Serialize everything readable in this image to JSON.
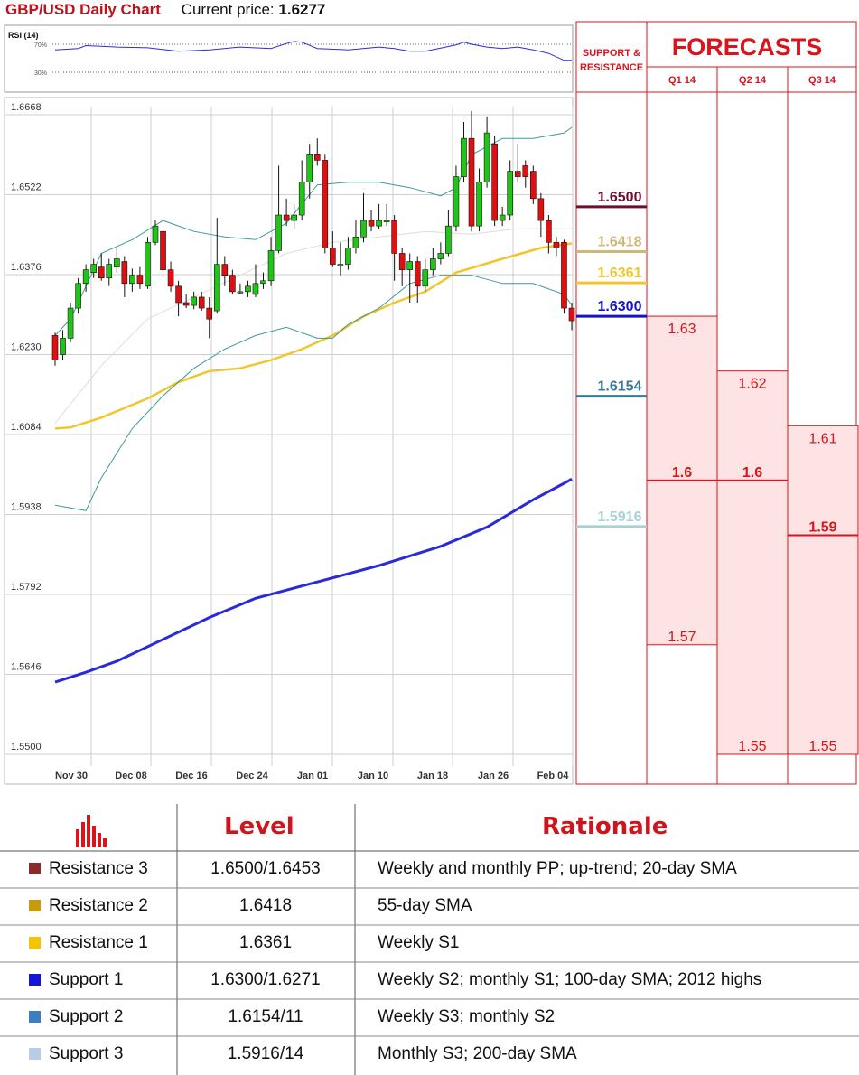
{
  "header": {
    "title": "GBP/USD Daily Chart",
    "price_label": "Current price:",
    "price_value": "1.6277"
  },
  "rsi_panel": {
    "label": "RSI (14)",
    "level_70": "70%",
    "level_30": "30%"
  },
  "forecast_panel": {
    "support_resistance_label": [
      "SUPPORT &",
      "RESISTANCE"
    ],
    "forecasts_title": "FORECASTS",
    "quarters": [
      "Q1 14",
      "Q2 14",
      "Q3 14"
    ]
  },
  "chart_data": {
    "type": "candlestick",
    "title": "GBP/USD Daily Chart",
    "y_ticks": [
      "1.6668",
      "1.6522",
      "1.6376",
      "1.6230",
      "1.6084",
      "1.5938",
      "1.5792",
      "1.5646",
      "1.5500"
    ],
    "ylim": [
      1.55,
      1.6668
    ],
    "x_ticks": [
      "Nov 30",
      "Dec 08",
      "Dec 16",
      "Dec 24",
      "Jan 01",
      "Jan 10",
      "Jan 18",
      "Jan 26",
      "Feb 04"
    ],
    "candles": [
      [
        1.625,
        1.6205,
        1.6255,
        1.6195
      ],
      [
        1.6215,
        1.6245,
        1.626,
        1.6205
      ],
      [
        1.6245,
        1.63,
        1.631,
        1.6238
      ],
      [
        1.63,
        1.6345,
        1.6355,
        1.629
      ],
      [
        1.6345,
        1.637,
        1.638,
        1.633
      ],
      [
        1.6365,
        1.638,
        1.639,
        1.6355
      ],
      [
        1.6375,
        1.6355,
        1.64,
        1.635
      ],
      [
        1.6355,
        1.638,
        1.639,
        1.634
      ],
      [
        1.6375,
        1.639,
        1.641,
        1.6365
      ],
      [
        1.6385,
        1.6345,
        1.6395,
        1.632
      ],
      [
        1.6345,
        1.636,
        1.6372,
        1.633
      ],
      [
        1.636,
        1.6345,
        1.6375,
        1.6335
      ],
      [
        1.634,
        1.642,
        1.643,
        1.6335
      ],
      [
        1.642,
        1.645,
        1.646,
        1.6415
      ],
      [
        1.644,
        1.637,
        1.645,
        1.636
      ],
      [
        1.637,
        1.634,
        1.6385,
        1.633
      ],
      [
        1.634,
        1.631,
        1.635,
        1.6285
      ],
      [
        1.631,
        1.6305,
        1.6325,
        1.63
      ],
      [
        1.6305,
        1.632,
        1.633,
        1.6298
      ],
      [
        1.632,
        1.63,
        1.633,
        1.6295
      ],
      [
        1.63,
        1.628,
        1.632,
        1.6245
      ],
      [
        1.6295,
        1.638,
        1.6465,
        1.629
      ],
      [
        1.638,
        1.636,
        1.6395,
        1.634
      ],
      [
        1.636,
        1.633,
        1.637,
        1.6325
      ],
      [
        1.633,
        1.633,
        1.6345,
        1.6325
      ],
      [
        1.633,
        1.634,
        1.635,
        1.632
      ],
      [
        1.6325,
        1.6345,
        1.638,
        1.632
      ],
      [
        1.6345,
        1.635,
        1.6365,
        1.6335
      ],
      [
        1.635,
        1.6405,
        1.643,
        1.634
      ],
      [
        1.6405,
        1.647,
        1.656,
        1.64
      ],
      [
        1.647,
        1.646,
        1.65,
        1.645
      ],
      [
        1.646,
        1.647,
        1.649,
        1.6445
      ],
      [
        1.647,
        1.653,
        1.657,
        1.646
      ],
      [
        1.653,
        1.658,
        1.66,
        1.65
      ],
      [
        1.658,
        1.657,
        1.661,
        1.656
      ],
      [
        1.657,
        1.641,
        1.658,
        1.64
      ],
      [
        1.641,
        1.638,
        1.644,
        1.6375
      ],
      [
        1.638,
        1.638,
        1.642,
        1.636
      ],
      [
        1.638,
        1.641,
        1.643,
        1.637
      ],
      [
        1.641,
        1.643,
        1.646,
        1.64
      ],
      [
        1.643,
        1.646,
        1.651,
        1.642
      ],
      [
        1.646,
        1.645,
        1.648,
        1.644
      ],
      [
        1.645,
        1.646,
        1.649,
        1.6445
      ],
      [
        1.646,
        1.646,
        1.649,
        1.645
      ],
      [
        1.646,
        1.64,
        1.647,
        1.635
      ],
      [
        1.64,
        1.637,
        1.641,
        1.634
      ],
      [
        1.637,
        1.6385,
        1.64,
        1.631
      ],
      [
        1.6385,
        1.634,
        1.6395,
        1.631
      ],
      [
        1.634,
        1.637,
        1.639,
        1.633
      ],
      [
        1.637,
        1.639,
        1.641,
        1.636
      ],
      [
        1.639,
        1.64,
        1.642,
        1.638
      ],
      [
        1.64,
        1.645,
        1.648,
        1.6395
      ],
      [
        1.645,
        1.654,
        1.656,
        1.644
      ],
      [
        1.654,
        1.661,
        1.664,
        1.653
      ],
      [
        1.661,
        1.645,
        1.666,
        1.644
      ],
      [
        1.645,
        1.653,
        1.6555,
        1.644
      ],
      [
        1.653,
        1.662,
        1.665,
        1.652
      ],
      [
        1.66,
        1.646,
        1.6615,
        1.645
      ],
      [
        1.646,
        1.647,
        1.6485,
        1.645
      ],
      [
        1.647,
        1.655,
        1.657,
        1.646
      ],
      [
        1.655,
        1.654,
        1.66,
        1.653
      ],
      [
        1.656,
        1.654,
        1.657,
        1.652
      ],
      [
        1.655,
        1.65,
        1.656,
        1.649
      ],
      [
        1.65,
        1.646,
        1.651,
        1.643
      ],
      [
        1.646,
        1.642,
        1.647,
        1.64
      ],
      [
        1.642,
        1.641,
        1.643,
        1.6395
      ],
      [
        1.642,
        1.63,
        1.6425,
        1.629
      ],
      [
        1.63,
        1.6277,
        1.631,
        1.626
      ]
    ],
    "series": [
      {
        "name": "20-day SMA",
        "color": "#dddddd",
        "values": [
          [
            0,
            1.609
          ],
          [
            6,
            1.6195
          ],
          [
            12,
            1.628
          ],
          [
            18,
            1.632
          ],
          [
            24,
            1.636
          ],
          [
            30,
            1.64
          ],
          [
            36,
            1.642
          ],
          [
            42,
            1.643
          ],
          [
            48,
            1.644
          ],
          [
            54,
            1.6435
          ],
          [
            60,
            1.6445
          ],
          [
            67,
            1.6445
          ]
        ]
      },
      {
        "name": "55-day SMA",
        "color": "#f2c62a",
        "values": [
          [
            0,
            1.608
          ],
          [
            2,
            1.6082
          ],
          [
            6,
            1.61
          ],
          [
            12,
            1.6135
          ],
          [
            16,
            1.6165
          ],
          [
            20,
            1.6185
          ],
          [
            24,
            1.619
          ],
          [
            28,
            1.6205
          ],
          [
            32,
            1.6225
          ],
          [
            36,
            1.625
          ],
          [
            40,
            1.6285
          ],
          [
            44,
            1.631
          ],
          [
            48,
            1.633
          ],
          [
            52,
            1.6365
          ],
          [
            58,
            1.639
          ],
          [
            63,
            1.641
          ],
          [
            67,
            1.6418
          ]
        ]
      },
      {
        "name": "100-day SMA",
        "color": "#2a2ad8",
        "values": [
          [
            0,
            1.5617
          ],
          [
            4,
            1.5635
          ],
          [
            8,
            1.5655
          ],
          [
            14,
            1.5695
          ],
          [
            20,
            1.5735
          ],
          [
            26,
            1.577
          ],
          [
            34,
            1.58
          ],
          [
            42,
            1.583
          ],
          [
            50,
            1.5865
          ],
          [
            56,
            1.59
          ],
          [
            62,
            1.595
          ],
          [
            66,
            1.598
          ],
          [
            67,
            1.5988
          ]
        ]
      },
      {
        "name": "Upper band",
        "color": "#3e9a9a",
        "values": [
          [
            0,
            1.625
          ],
          [
            2,
            1.628
          ],
          [
            6,
            1.64
          ],
          [
            10,
            1.6425
          ],
          [
            14,
            1.646
          ],
          [
            18,
            1.644
          ],
          [
            22,
            1.643
          ],
          [
            26,
            1.6425
          ],
          [
            30,
            1.6455
          ],
          [
            34,
            1.6525
          ],
          [
            38,
            1.653
          ],
          [
            42,
            1.653
          ],
          [
            46,
            1.652
          ],
          [
            50,
            1.6505
          ],
          [
            52,
            1.652
          ],
          [
            54,
            1.658
          ],
          [
            58,
            1.661
          ],
          [
            62,
            1.661
          ],
          [
            66,
            1.662
          ],
          [
            67,
            1.663
          ]
        ]
      },
      {
        "name": "Lower band",
        "color": "#3e9a9a",
        "values": [
          [
            0,
            1.594
          ],
          [
            4,
            1.593
          ],
          [
            6,
            1.599
          ],
          [
            10,
            1.608
          ],
          [
            14,
            1.614
          ],
          [
            18,
            1.619
          ],
          [
            22,
            1.6225
          ],
          [
            26,
            1.625
          ],
          [
            30,
            1.6265
          ],
          [
            34,
            1.6245
          ],
          [
            36,
            1.6245
          ],
          [
            38,
            1.627
          ],
          [
            42,
            1.63
          ],
          [
            46,
            1.6345
          ],
          [
            50,
            1.636
          ],
          [
            54,
            1.636
          ],
          [
            58,
            1.6345
          ],
          [
            62,
            1.6345
          ],
          [
            66,
            1.6325
          ],
          [
            67,
            1.6305
          ]
        ]
      }
    ],
    "rsi": [
      [
        0,
        62
      ],
      [
        3,
        64
      ],
      [
        4,
        68
      ],
      [
        8,
        66
      ],
      [
        12,
        65
      ],
      [
        16,
        60
      ],
      [
        20,
        62
      ],
      [
        24,
        66
      ],
      [
        28,
        64
      ],
      [
        30,
        71
      ],
      [
        31,
        74
      ],
      [
        32,
        73
      ],
      [
        34,
        64
      ],
      [
        38,
        62
      ],
      [
        42,
        66
      ],
      [
        44,
        64
      ],
      [
        46,
        60
      ],
      [
        48,
        60
      ],
      [
        52,
        69
      ],
      [
        53,
        73
      ],
      [
        54,
        70
      ],
      [
        56,
        66
      ],
      [
        58,
        64
      ],
      [
        60,
        66
      ],
      [
        62,
        62
      ],
      [
        64,
        57
      ],
      [
        66,
        47
      ],
      [
        67,
        47
      ]
    ]
  },
  "sr_levels": [
    {
      "label": "1.6500",
      "value": 1.65,
      "color": "#6a1030"
    },
    {
      "label": "1.6418",
      "value": 1.6418,
      "color": "#cdb878"
    },
    {
      "label": "1.6361",
      "value": 1.6361,
      "color": "#f2c62a"
    },
    {
      "label": "1.6300",
      "value": 1.63,
      "color": "#1414c8"
    },
    {
      "label": "1.6154",
      "value": 1.6154,
      "color": "#3a7896"
    },
    {
      "label": "1.5916",
      "value": 1.5916,
      "color": "#a8d0d8"
    }
  ],
  "forecasts": [
    {
      "quarter": "Q1 14",
      "high": 1.63,
      "median": 1.6,
      "low": 1.57,
      "high_label": "1.63",
      "median_label": "1.6",
      "low_label": "1.57"
    },
    {
      "quarter": "Q2 14",
      "high": 1.62,
      "median": 1.6,
      "low": 1.55,
      "high_label": "1.62",
      "median_label": "1.6",
      "low_label": "1.55"
    },
    {
      "quarter": "Q3 14",
      "high": 1.61,
      "median": 1.59,
      "low": 1.55,
      "high_label": "1.61",
      "median_label": "1.59",
      "low_label": "1.55"
    }
  ],
  "table": {
    "col_level": "Level",
    "col_rationale": "Rationale",
    "rows": [
      {
        "name": "Resistance 3",
        "level": "1.6500/1.6453",
        "rationale": "Weekly and monthly PP; up-trend; 20-day SMA",
        "color": "#8b2a2a"
      },
      {
        "name": "Resistance 2",
        "level": "1.6418",
        "rationale": "55-day SMA",
        "color": "#c89b0e"
      },
      {
        "name": "Resistance 1",
        "level": "1.6361",
        "rationale": "Weekly S1",
        "color": "#f4c400"
      },
      {
        "name": "Support 1",
        "level": "1.6300/1.6271",
        "rationale": "Weekly S2; monthly S1; 100-day SMA; 2012 highs",
        "color": "#1414d8"
      },
      {
        "name": "Support 2",
        "level": "1.6154/11",
        "rationale": "Weekly S3; monthly S2",
        "color": "#3c7ec0"
      },
      {
        "name": "Support 3",
        "level": "1.5916/14",
        "rationale": "Monthly S3; 200-day SMA",
        "color": "#b8cce6"
      }
    ]
  }
}
